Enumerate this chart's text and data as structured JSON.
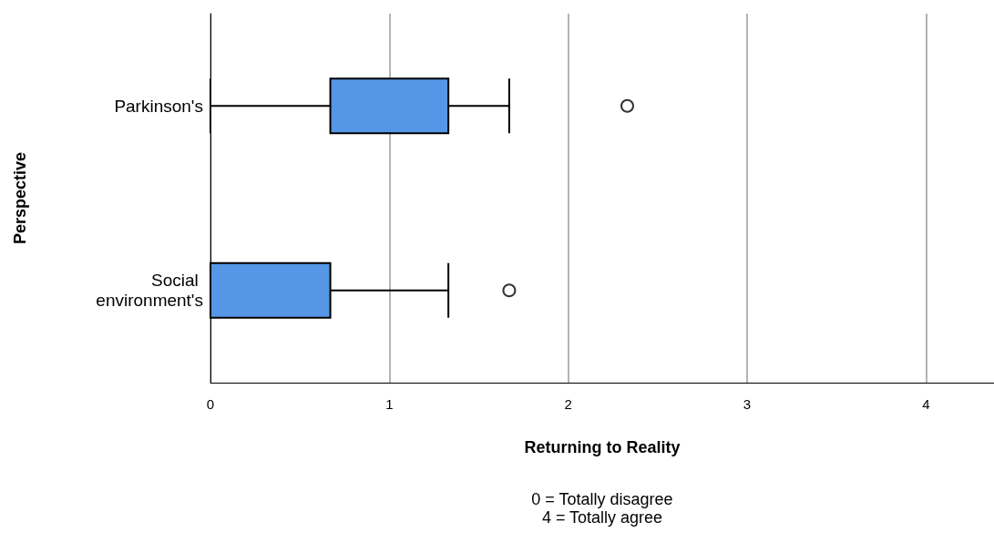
{
  "chart_data": {
    "type": "box",
    "orientation": "horizontal",
    "xlabel": "Returning to Reality",
    "ylabel": "Perspective",
    "categories": [
      "Parkinson's",
      "Social environment's"
    ],
    "boxes": [
      {
        "low": 0,
        "q1": 0.67,
        "median": 1.33,
        "q3": 1.33,
        "high": 1.67,
        "outliers": [
          2.33
        ]
      },
      {
        "low": 0,
        "q1": 0,
        "median": 0,
        "q3": 0.67,
        "high": 1.33,
        "outliers": [
          1.67
        ]
      }
    ],
    "color": "#5596e6",
    "xlim": [
      0,
      4.38
    ],
    "xticks": [
      0,
      1,
      2,
      3,
      4
    ],
    "grid": "x",
    "annotations": [
      "0 = Totally disagree",
      "4 = Totally agree"
    ]
  }
}
